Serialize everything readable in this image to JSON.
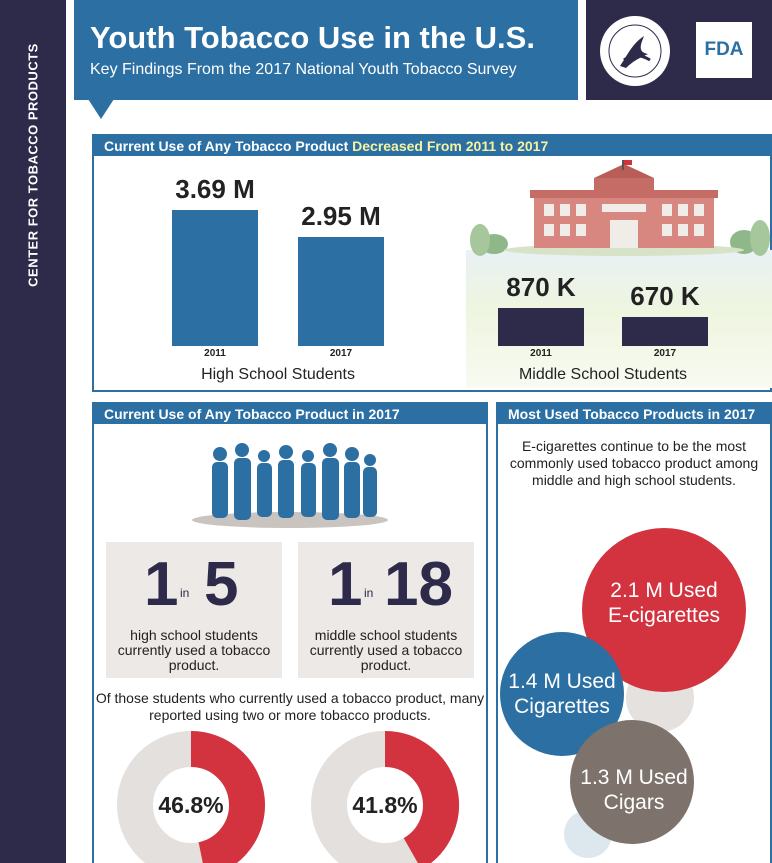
{
  "sidebar": {
    "text": "CENTER FOR TOBACCO PRODUCTS"
  },
  "header": {
    "title": "Youth Tobacco Use in the U.S.",
    "subtitle": "Key Findings From the 2017 National Youth Tobacco Survey",
    "fda_logo": "FDA"
  },
  "colors": {
    "navy": "#2d2a4a",
    "blue": "#2b6fa3",
    "red": "#d2333f",
    "gray": "#e3e0de",
    "brown": "#7e736c",
    "yellow": "#f6f2a0"
  },
  "trend": {
    "heading_prefix": "Current Use of Any Tobacco Product ",
    "heading_highlight": "Decreased From 2011 to 2017"
  },
  "left_panel": {
    "heading": "Current Use of Any Tobacco Product in 2017",
    "ratios": [
      {
        "num": "1",
        "in": "in",
        "den": "5",
        "desc": "high school students currently used a tobacco product."
      },
      {
        "num": "1",
        "in": "in",
        "den": "18",
        "desc": "middle school students currently used a tobacco product."
      }
    ],
    "multi_note": "Of those students who currently used a tobacco product, many reported using two or more tobacco products."
  },
  "right_panel": {
    "heading": "Most Used Tobacco Products in 2017",
    "description": "E-cigarettes continue to be the most commonly used tobacco product among middle and high school students."
  },
  "chart_data": [
    {
      "type": "bar",
      "title": "Current Use of Any Tobacco Product Decreased From 2011 to 2017",
      "groups": [
        {
          "name": "High School Students",
          "categories": [
            "2011",
            "2017"
          ],
          "values": [
            3.69,
            2.95
          ],
          "unit": "M",
          "labels": [
            "3.69 M",
            "2.95 M"
          ]
        },
        {
          "name": "Middle School Students",
          "categories": [
            "2011",
            "2017"
          ],
          "values": [
            870,
            670
          ],
          "unit": "K",
          "labels": [
            "870 K",
            "670 K"
          ]
        }
      ]
    },
    {
      "type": "pie",
      "title": "Current Use of Any Tobacco Product in 2017",
      "donuts": [
        {
          "value": 46.8,
          "label": "46.8%"
        },
        {
          "value": 41.8,
          "label": "41.8%"
        }
      ]
    },
    {
      "type": "bubble",
      "title": "Most Used Tobacco Products in 2017",
      "items": [
        {
          "line1": "2.1 M Used",
          "line2": "E-cigarettes",
          "value": 2.1
        },
        {
          "line1": "1.4 M Used",
          "line2": "Cigarettes",
          "value": 1.4
        },
        {
          "line1": "1.3 M Used",
          "line2": "Cigars",
          "value": 1.3
        }
      ]
    }
  ]
}
